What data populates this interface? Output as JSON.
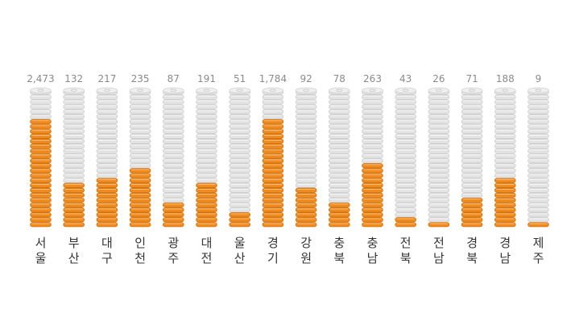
{
  "chart_data": {
    "type": "bar",
    "style": "stacked-coins",
    "categories": [
      "서울",
      "부산",
      "대구",
      "인천",
      "광주",
      "대전",
      "울산",
      "경기",
      "강원",
      "충북",
      "충남",
      "전북",
      "전남",
      "경북",
      "경남",
      "제주"
    ],
    "category_lines": [
      [
        "서",
        "울"
      ],
      [
        "부",
        "산"
      ],
      [
        "대",
        "구"
      ],
      [
        "인",
        "천"
      ],
      [
        "광",
        "주"
      ],
      [
        "대",
        "전"
      ],
      [
        "울",
        "산"
      ],
      [
        "경",
        "기"
      ],
      [
        "강",
        "원"
      ],
      [
        "충",
        "북"
      ],
      [
        "충",
        "남"
      ],
      [
        "전",
        "북"
      ],
      [
        "전",
        "남"
      ],
      [
        "경",
        "북"
      ],
      [
        "경",
        "남"
      ],
      [
        "제",
        "주"
      ]
    ],
    "value_labels": [
      "2,473",
      "132",
      "217",
      "235",
      "87",
      "191",
      "51",
      "1,784",
      "92",
      "78",
      "263",
      "43",
      "26",
      "71",
      "188",
      "9"
    ],
    "values": [
      2473,
      132,
      217,
      235,
      87,
      191,
      51,
      1784,
      92,
      78,
      263,
      43,
      26,
      71,
      188,
      9
    ],
    "filled_fraction": [
      0.79,
      0.32,
      0.37,
      0.42,
      0.19,
      0.32,
      0.11,
      0.79,
      0.27,
      0.17,
      0.47,
      0.06,
      0.02,
      0.22,
      0.37,
      0.02
    ],
    "colors": {
      "filled": "#f08a1c",
      "filled_edge": "#c96a08",
      "empty": "#e3e3e3",
      "empty_edge": "#c8c8c8",
      "value_text": "#8a8a8a",
      "category_text": "#333333"
    },
    "title": "",
    "xlabel": "",
    "ylabel": "",
    "grid": false,
    "legend": "none"
  }
}
